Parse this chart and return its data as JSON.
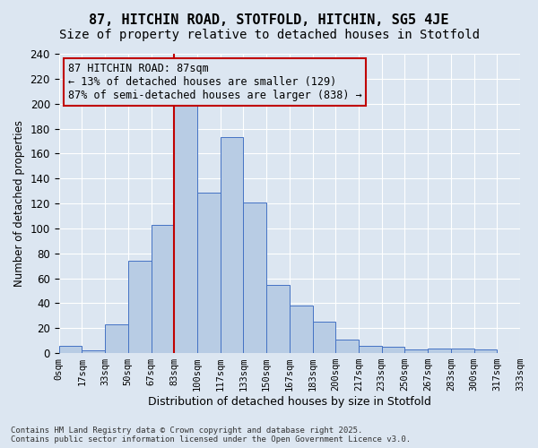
{
  "title1": "87, HITCHIN ROAD, STOTFOLD, HITCHIN, SG5 4JE",
  "title2": "Size of property relative to detached houses in Stotfold",
  "xlabel": "Distribution of detached houses by size in Stotfold",
  "ylabel": "Number of detached properties",
  "bar_labels": [
    "0sqm",
    "17sqm",
    "33sqm",
    "50sqm",
    "67sqm",
    "83sqm",
    "100sqm",
    "117sqm",
    "133sqm",
    "150sqm",
    "167sqm",
    "183sqm",
    "200sqm",
    "217sqm",
    "233sqm",
    "250sqm",
    "267sqm",
    "283sqm",
    "300sqm",
    "317sqm",
    "333sqm"
  ],
  "bar_values": [
    6,
    2,
    23,
    74,
    103,
    200,
    129,
    173,
    121,
    55,
    38,
    25,
    11,
    6,
    5,
    3,
    4,
    4,
    3,
    0
  ],
  "bar_color": "#b8cce4",
  "bar_edgecolor": "#4472c4",
  "bg_color": "#dce6f1",
  "vline_x": 5,
  "vline_color": "#c00000",
  "annotation_text": "87 HITCHIN ROAD: 87sqm\n← 13% of detached houses are smaller (129)\n87% of semi-detached houses are larger (838) →",
  "annotation_box_color": "#c00000",
  "footnote": "Contains HM Land Registry data © Crown copyright and database right 2025.\nContains public sector information licensed under the Open Government Licence v3.0.",
  "ylim": [
    0,
    240
  ],
  "yticks": [
    0,
    20,
    40,
    60,
    80,
    100,
    120,
    140,
    160,
    180,
    200,
    220,
    240
  ],
  "title_fontsize": 11,
  "subtitle_fontsize": 10,
  "annotation_fontsize": 8.5
}
